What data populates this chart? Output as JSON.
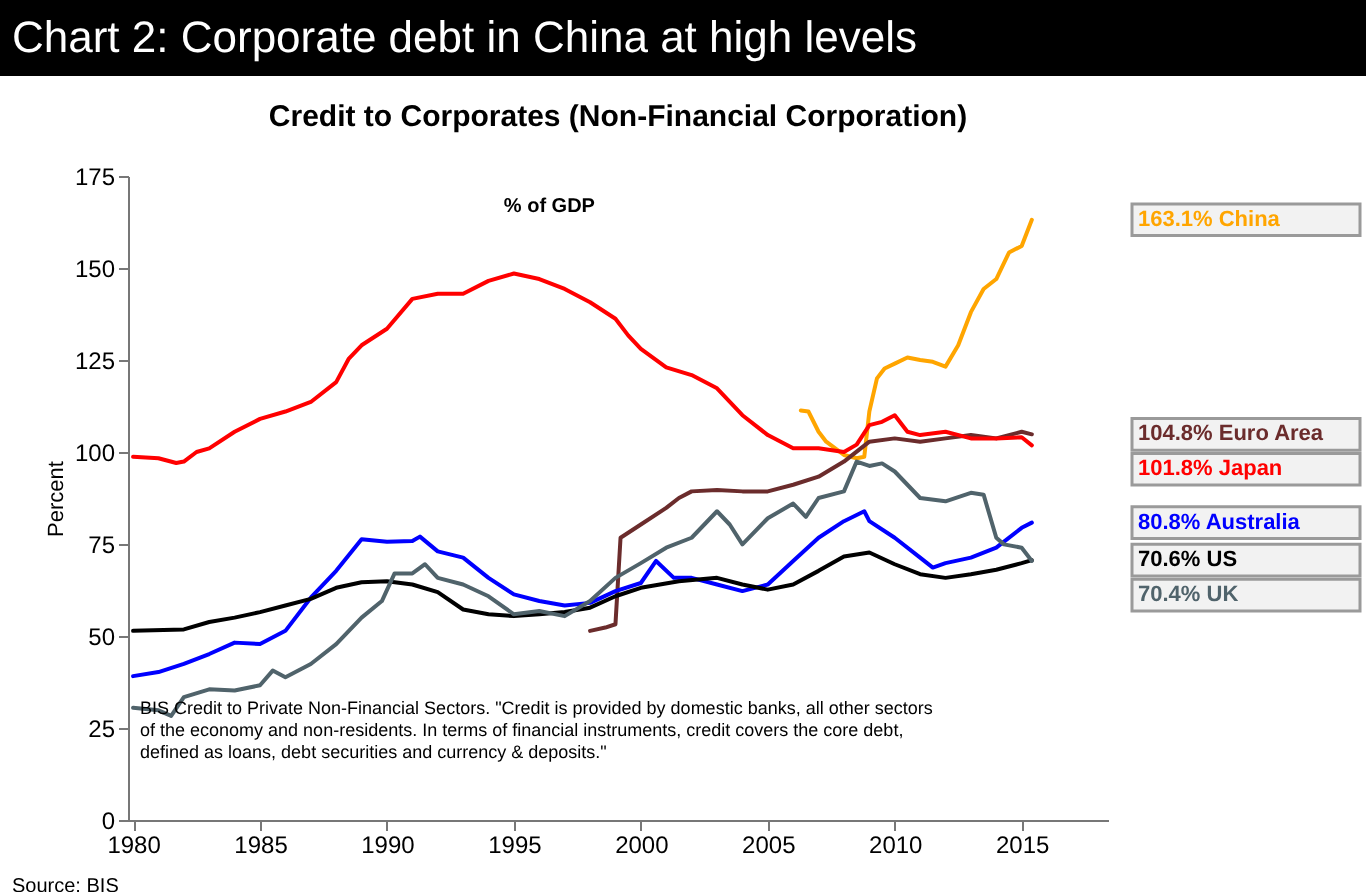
{
  "chart_data": {
    "type": "line",
    "title": "Chart 2: Corporate debt in China at high levels",
    "subtitle": "Credit to Corporates (Non-Financial Corporation)",
    "ylabel": "Percent",
    "annotations": [
      "% of GDP",
      "BIS Credit to Private Non-Financial Sectors.  \"Credit is provided by domestic banks, all other sectors of the economy and non-residents. In terms of financial instruments, credit covers the core debt, defined as loans, debt securities and currency & deposits.\"",
      "Source: BIS"
    ],
    "xlim": [
      1979.8,
      2018.4
    ],
    "xticks": [
      1980,
      1985,
      1990,
      1995,
      2000,
      2005,
      2010,
      2015
    ],
    "ylim": [
      0,
      175
    ],
    "yticks": [
      0,
      25,
      50,
      75,
      100,
      125,
      150,
      175
    ],
    "grid": false,
    "series": [
      {
        "name": "China",
        "color": "#ffa500",
        "x": [
          2006.3,
          2006.6,
          2007,
          2007.3,
          2008,
          2008.5,
          2008.8,
          2009,
          2009.3,
          2009.6,
          2010,
          2010.5,
          2011,
          2011.5,
          2012,
          2012.5,
          2013,
          2013.5,
          2014,
          2014.5,
          2015,
          2015.4
        ],
        "values": [
          111.3,
          111,
          105.5,
          102.8,
          99.2,
          98.3,
          98.7,
          111,
          120,
          122.7,
          124,
          125.7,
          125,
          124.5,
          123.2,
          129,
          138,
          144.3,
          147,
          154.2,
          156,
          163.1
        ],
        "value_labels": [
          null,
          null,
          null,
          null,
          null,
          null,
          null,
          null,
          null,
          null,
          null,
          null,
          null,
          null,
          null,
          null,
          null,
          null,
          null,
          null,
          null,
          "163.1%"
        ]
      },
      {
        "name": "Euro Area",
        "color": "#6b2c2c",
        "x": [
          1998,
          1998.6,
          1999,
          1999.2,
          2000,
          2001,
          2001.5,
          2002,
          2003,
          2004,
          2005,
          2006,
          2007,
          2008,
          2009,
          2010,
          2011,
          2012,
          2013,
          2014,
          2015,
          2015.4
        ],
        "values": [
          51.4,
          52.3,
          53.2,
          76.7,
          80.3,
          84.8,
          87.5,
          89.3,
          89.7,
          89.3,
          89.3,
          91.1,
          93.3,
          97.4,
          102.8,
          103.7,
          102.8,
          103.7,
          104.6,
          103.7,
          105.5,
          104.8
        ],
        "value_labels": [
          null,
          null,
          null,
          null,
          null,
          null,
          null,
          null,
          null,
          null,
          null,
          null,
          null,
          null,
          null,
          null,
          null,
          null,
          null,
          null,
          null,
          "104.8%"
        ]
      },
      {
        "name": "Japan",
        "color": "#ff0000",
        "x": [
          1980,
          1981,
          1981.7,
          1982,
          1982.5,
          1983,
          1984,
          1985,
          1986,
          1987,
          1988,
          1988.5,
          1989,
          1990,
          1991,
          1992,
          1993,
          1994,
          1995,
          1996,
          1997,
          1998,
          1999,
          1999.5,
          2000,
          2001,
          2002,
          2003,
          2004,
          2005,
          2006,
          2007,
          2008,
          2008.5,
          2009,
          2009.5,
          2010,
          2010.5,
          2011,
          2012,
          2013,
          2014,
          2015,
          2015.4
        ],
        "values": [
          98.7,
          98.3,
          97,
          97.4,
          100,
          101,
          105.5,
          109,
          111,
          113.6,
          119,
          125.4,
          129,
          133.5,
          141.6,
          143,
          143,
          146.5,
          148.5,
          147,
          144.3,
          140.7,
          136.2,
          131.7,
          128,
          123,
          120.9,
          117.3,
          110,
          104.6,
          101,
          101,
          100,
          102,
          107.3,
          108.2,
          110,
          105.5,
          104.6,
          105.5,
          103.7,
          103.7,
          104,
          101.8
        ],
        "value_labels": [
          null,
          null,
          null,
          null,
          null,
          null,
          null,
          null,
          null,
          null,
          null,
          null,
          null,
          null,
          null,
          null,
          null,
          null,
          null,
          null,
          null,
          null,
          null,
          null,
          null,
          null,
          null,
          null,
          null,
          null,
          null,
          null,
          null,
          null,
          null,
          null,
          null,
          null,
          null,
          null,
          null,
          null,
          null,
          "101.8%"
        ]
      },
      {
        "name": "Australia",
        "color": "#0000ff",
        "x": [
          1980,
          1981,
          1982,
          1983,
          1984,
          1985,
          1986,
          1987,
          1988,
          1989,
          1990,
          1991,
          1991.3,
          1992,
          1993,
          1994,
          1995,
          1996,
          1997,
          1998,
          1999,
          2000,
          2000.6,
          2001.3,
          2002,
          2003,
          2004,
          2005,
          2006,
          2007,
          2008,
          2008.8,
          2009,
          2010,
          2011,
          2011.5,
          2012,
          2013,
          2014,
          2015,
          2015.4
        ],
        "values": [
          39.1,
          40.2,
          42.4,
          45.1,
          48.2,
          47.8,
          51.4,
          60.4,
          67.7,
          76.3,
          75.6,
          75.8,
          77,
          73,
          71.3,
          65.8,
          61.3,
          59.5,
          58.3,
          59,
          62.2,
          64.4,
          70.4,
          65.8,
          65.8,
          64,
          62.2,
          64,
          70.4,
          76.7,
          81.2,
          83.9,
          81.2,
          76.7,
          71.3,
          68.6,
          69.8,
          71.3,
          74,
          79.4,
          80.8
        ],
        "value_labels": [
          null,
          null,
          null,
          null,
          null,
          null,
          null,
          null,
          null,
          null,
          null,
          null,
          null,
          null,
          null,
          null,
          null,
          null,
          null,
          null,
          null,
          null,
          null,
          null,
          null,
          null,
          null,
          null,
          null,
          null,
          null,
          null,
          null,
          null,
          null,
          null,
          null,
          null,
          null,
          null,
          "80.8%"
        ]
      },
      {
        "name": "US",
        "color": "#000000",
        "x": [
          1980,
          1982,
          1983,
          1984,
          1985,
          1986,
          1987,
          1988,
          1989,
          1990,
          1991,
          1992,
          1993,
          1994,
          1995,
          1996,
          1997,
          1998,
          1999,
          2000,
          2001.5,
          2003,
          2004,
          2005,
          2006,
          2007,
          2008,
          2009,
          2010,
          2011,
          2012,
          2013,
          2014,
          2015,
          2015.4
        ],
        "values": [
          51.4,
          51.8,
          53.8,
          55,
          56.5,
          58.3,
          60.1,
          63.1,
          64.6,
          64.9,
          64,
          61.9,
          57.2,
          55.9,
          55.4,
          55.9,
          56.5,
          57.7,
          60.8,
          63.1,
          64.9,
          65.8,
          64,
          62.6,
          64,
          67.7,
          71.6,
          72.7,
          69.5,
          66.8,
          65.8,
          66.8,
          68,
          69.8,
          70.6
        ],
        "value_labels": [
          null,
          null,
          null,
          null,
          null,
          null,
          null,
          null,
          null,
          null,
          null,
          null,
          null,
          null,
          null,
          null,
          null,
          null,
          null,
          null,
          null,
          null,
          null,
          null,
          null,
          null,
          null,
          null,
          null,
          null,
          null,
          null,
          null,
          null,
          "70.6%"
        ]
      },
      {
        "name": "UK",
        "color": "#50636b",
        "x": [
          1980,
          1981,
          1981.5,
          1982,
          1983,
          1984,
          1985,
          1985.5,
          1986,
          1987,
          1988,
          1989,
          1989.8,
          1990.3,
          1991,
          1991.5,
          1992,
          1993,
          1994,
          1995,
          1996,
          1997,
          1998,
          1999,
          2000,
          2001,
          2002,
          2003,
          2003.5,
          2004,
          2005,
          2006,
          2006.5,
          2007,
          2008,
          2008.5,
          2009,
          2009.5,
          2010,
          2011,
          2012,
          2013,
          2013.5,
          2014,
          2014.3,
          2015,
          2015.4
        ],
        "values": [
          30.5,
          29.8,
          28.3,
          33.4,
          35.5,
          35.2,
          36.6,
          40.6,
          38.8,
          42.4,
          47.8,
          55,
          59.5,
          67,
          67,
          69.5,
          65.8,
          64,
          60.8,
          55.9,
          56.8,
          55.4,
          59.5,
          65.8,
          69.8,
          74,
          76.7,
          83.9,
          80.3,
          74.9,
          82,
          86,
          82.4,
          87.5,
          89.3,
          97.4,
          96.2,
          96.9,
          94.7,
          87.5,
          86.6,
          88.9,
          88.4,
          76.7,
          74.9,
          74,
          70.4
        ],
        "value_labels": [
          null,
          null,
          null,
          null,
          null,
          null,
          null,
          null,
          null,
          null,
          null,
          null,
          null,
          null,
          null,
          null,
          null,
          null,
          null,
          null,
          null,
          null,
          null,
          null,
          null,
          null,
          null,
          null,
          null,
          null,
          null,
          null,
          null,
          null,
          null,
          null,
          null,
          null,
          null,
          null,
          null,
          null,
          null,
          null,
          null,
          null,
          "70.4%"
        ]
      }
    ]
  }
}
